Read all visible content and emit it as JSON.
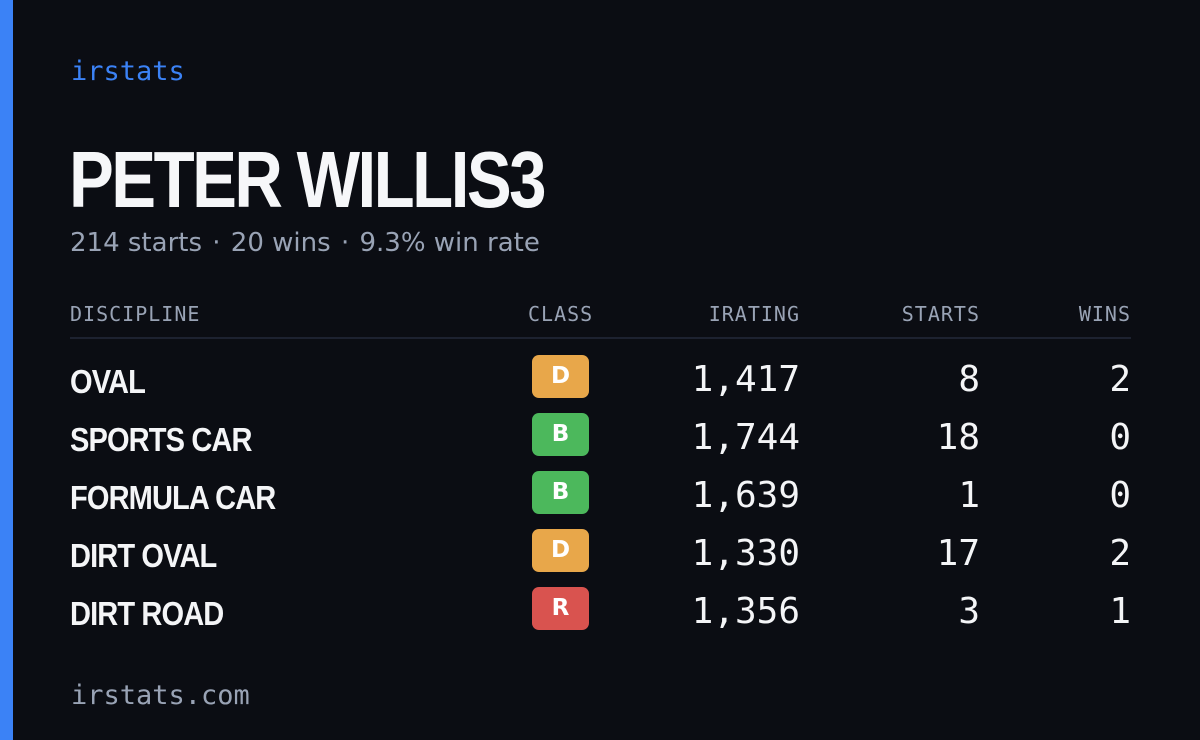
{
  "brand": "irstats",
  "profile": {
    "name": "PETER WILLIS3",
    "starts_text": "214 starts",
    "wins_text": "20 wins",
    "win_rate_text": "9.3% win rate",
    "separator": "·"
  },
  "table": {
    "headers": {
      "discipline": "DISCIPLINE",
      "class": "CLASS",
      "irating": "IRATING",
      "starts": "STARTS",
      "wins": "WINS"
    },
    "rows": [
      {
        "discipline": "OVAL",
        "class": "D",
        "irating": "1,417",
        "starts": "8",
        "wins": "2"
      },
      {
        "discipline": "SPORTS CAR",
        "class": "B",
        "irating": "1,744",
        "starts": "18",
        "wins": "0"
      },
      {
        "discipline": "FORMULA CAR",
        "class": "B",
        "irating": "1,639",
        "starts": "1",
        "wins": "0"
      },
      {
        "discipline": "DIRT OVAL",
        "class": "D",
        "irating": "1,330",
        "starts": "17",
        "wins": "2"
      },
      {
        "discipline": "DIRT ROAD",
        "class": "R",
        "irating": "1,356",
        "starts": "3",
        "wins": "1"
      }
    ]
  },
  "footer": {
    "domain": "irstats.com"
  },
  "colors": {
    "background": "#0b0d13",
    "accent": "#3b82f6",
    "muted": "#99a3b5",
    "class_D": "#e8a74a",
    "class_B": "#4cb85c",
    "class_R": "#d9534f"
  }
}
